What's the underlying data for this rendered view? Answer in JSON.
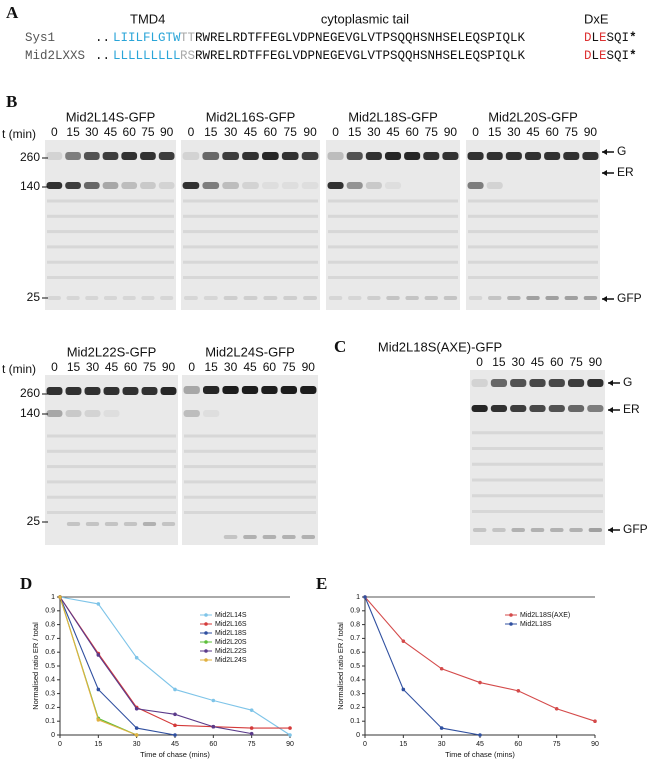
{
  "panel_a": {
    "label": "A",
    "headers": [
      "TMD4",
      "cytoplasmic tail",
      "DxE"
    ],
    "rows": [
      {
        "name": "Sys1",
        "dots": "..",
        "tmd": "LIILFLGTW",
        "linker": "TT",
        "tail": "RWRELRDTFFEGLVDPNEGEVGLVTPSQQHSNHSELEQSPIQLK",
        "d": "D",
        "l": "L",
        "e": "E",
        "end": "SQI",
        "stop": "*"
      },
      {
        "name": "Mid2LXXS",
        "dots": "..",
        "tmd": "LLLLLLLLL",
        "linker": "RS",
        "tail": "RWRELRDTFFEGLVDPNEGEVGLVTPSQQHSNHSELEQSPIQLK",
        "d": "D",
        "l": "L",
        "e": "E",
        "end": "SQI",
        "stop": "*"
      }
    ]
  },
  "panel_b": {
    "label": "B",
    "time_label": "t (min)",
    "times": [
      "0",
      "15",
      "30",
      "45",
      "60",
      "75",
      "90"
    ],
    "markers": [
      "260",
      "140",
      "25"
    ],
    "bands": [
      "G",
      "ER",
      "GFP"
    ],
    "blots": [
      "Mid2L14S-GFP",
      "Mid2L16S-GFP",
      "Mid2L18S-GFP",
      "Mid2L20S-GFP",
      "Mid2L22S-GFP",
      "Mid2L24S-GFP"
    ]
  },
  "panel_c": {
    "label": "C",
    "blot": "Mid2L18S(AXE)-GFP"
  },
  "chart_data": [
    {
      "type": "line",
      "label": "D",
      "x_label": "Time of chase (mins)",
      "y_label": "Normalised ratio ER / total",
      "x": [
        0,
        15,
        30,
        45,
        60,
        75,
        90
      ],
      "xlim": [
        0,
        90
      ],
      "xticks": [
        0,
        15,
        30,
        45,
        60,
        75,
        90
      ],
      "ylim": [
        0,
        1
      ],
      "yticks": [
        0,
        0.1,
        0.2,
        0.3,
        0.4,
        0.5,
        0.6,
        0.7,
        0.8,
        0.9,
        1
      ],
      "grid": false,
      "legend": "upper right",
      "series": [
        {
          "name": "Mid2L14S",
          "color": "#7ec4e8",
          "values": [
            1,
            0.95,
            0.56,
            0.33,
            0.25,
            0.18,
            0
          ]
        },
        {
          "name": "Mid2L16S",
          "color": "#d43a3a",
          "values": [
            1,
            0.59,
            0.2,
            0.07,
            0.06,
            0.05,
            0.05
          ]
        },
        {
          "name": "Mid2L18S",
          "color": "#2f4fa0",
          "values": [
            1,
            0.33,
            0.05,
            0,
            null,
            null,
            null
          ]
        },
        {
          "name": "Mid2L20S",
          "color": "#5cbf3a",
          "values": [
            1,
            0.12,
            0,
            null,
            null,
            null,
            null
          ]
        },
        {
          "name": "Mid2L22S",
          "color": "#5a3a8a",
          "values": [
            1,
            0.58,
            0.19,
            0.15,
            0.06,
            0.01,
            null
          ]
        },
        {
          "name": "Mid2L24S",
          "color": "#e0b040",
          "values": [
            1,
            0.11,
            0,
            null,
            null,
            null,
            null
          ]
        }
      ]
    },
    {
      "type": "line",
      "label": "E",
      "x_label": "Time of chase (mins)",
      "y_label": "Normalised ratio ER / total",
      "x": [
        0,
        15,
        30,
        45,
        60,
        75,
        90
      ],
      "xlim": [
        0,
        90
      ],
      "xticks": [
        0,
        15,
        30,
        45,
        60,
        75,
        90
      ],
      "ylim": [
        0,
        1
      ],
      "yticks": [
        0,
        0.1,
        0.2,
        0.3,
        0.4,
        0.5,
        0.6,
        0.7,
        0.8,
        0.9,
        1
      ],
      "grid": false,
      "legend": "upper right",
      "series": [
        {
          "name": "Mid2L18S(AXE)",
          "color": "#d44a4a",
          "values": [
            1,
            0.68,
            0.48,
            0.38,
            0.32,
            0.19,
            0.1
          ]
        },
        {
          "name": "Mid2L18S",
          "color": "#3050a0",
          "values": [
            1,
            0.33,
            0.05,
            0,
            null,
            null,
            null
          ]
        }
      ]
    }
  ]
}
